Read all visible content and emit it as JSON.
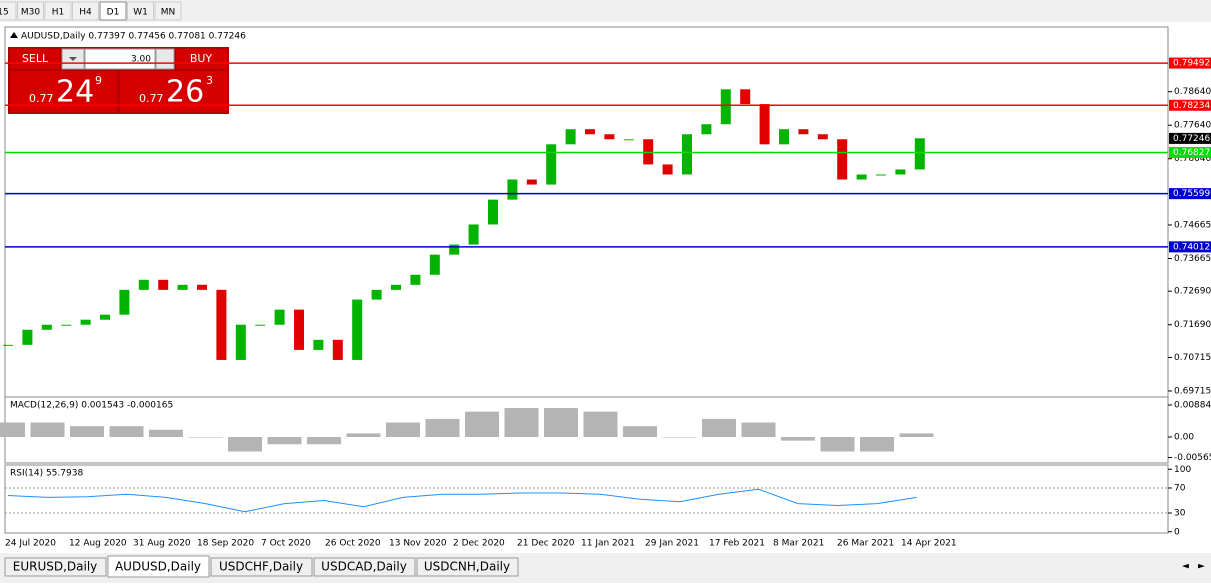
{
  "toolbar": {
    "timeframes": [
      "15",
      "M30",
      "H1",
      "H4",
      "D1",
      "W1",
      "MN"
    ]
  },
  "header": "AUDUSD,Daily 0.77397 0.77456 0.77081 0.77246",
  "trade_panel": {
    "sell": "SELL",
    "buy": "BUY",
    "lots": "3.00",
    "sell_price": [
      "0.77",
      "24",
      "9"
    ],
    "buy_price": [
      "0.77",
      "26",
      "3"
    ]
  },
  "price_chart": {
    "type": "candlestick",
    "ylim": [
      0.69535,
      0.80568
    ],
    "yticks": [
      {
        "value": 0.7864,
        "label": "0.78640"
      },
      {
        "value": 0.7764,
        "label": "0.77640"
      },
      {
        "value": 0.7664,
        "label": "0.76640"
      },
      0.74665,
      0.73665,
      {
        "value": 0.7269,
        "label": "0.72690"
      },
      {
        "value": 0.7169,
        "label": "0.71690"
      },
      0.70715,
      0.69715
    ],
    "closes": [
      0.7109,
      0.7154,
      0.7169,
      0.7169,
      0.7184,
      0.7199,
      0.7273,
      0.7303,
      0.7273,
      0.7288,
      0.7273,
      0.7064,
      0.7169,
      0.7169,
      0.7214,
      0.7094,
      0.7124,
      0.7064,
      0.7244,
      0.7273,
      0.7288,
      0.7318,
      0.7378,
      0.7408,
      0.7468,
      0.7542,
      0.7602,
      0.7587,
      0.7707,
      0.7752,
      0.7737,
      0.7722,
      0.7722,
      0.7647,
      0.7617,
      0.7737,
      0.7767,
      0.7871,
      0.7827,
      0.7707,
      0.7752,
      0.7737,
      0.7722,
      0.7602,
      0.7617,
      0.7617,
      0.7632,
      0.7725
    ],
    "up_color": "#00b400",
    "down_color": "#e00000",
    "levels": [
      {
        "value": 0.79492,
        "color": "#ff0000"
      },
      {
        "value": 0.78234,
        "color": "#ff0000"
      },
      {
        "value": 0.76827,
        "color": "#00dd00"
      },
      {
        "value": 0.75599,
        "color": "#0000cc"
      },
      {
        "value": 0.74012,
        "color": "#0000cc"
      }
    ],
    "current": 0.77246,
    "dates": [
      "24 Jul 2020",
      "12 Aug 2020",
      "31 Aug 2020",
      "18 Sep 2020",
      "7 Oct 2020",
      "26 Oct 2020",
      "13 Nov 2020",
      "2 Dec 2020",
      "21 Dec 2020",
      "11 Jan 2021",
      "29 Jan 2021",
      "17 Feb 2021",
      "8 Mar 2021",
      "26 Mar 2021",
      "14 Apr 2021"
    ]
  },
  "macd": {
    "label": "MACD(12,26,9) 0.001543 -0.000165",
    "ylim": [
      -0.00718,
      0.01105
    ],
    "yticks": [
      0.00884,
      {
        "value": 0,
        "label": "0.00"
      },
      -0.005651
    ],
    "values": [
      0.004,
      0.004,
      0.003,
      0.003,
      0.002,
      0.0,
      -0.004,
      -0.002,
      -0.002,
      0.001,
      0.004,
      0.005,
      0.007,
      0.008,
      0.008,
      0.007,
      0.003,
      0.0,
      0.005,
      0.004,
      -0.001,
      -0.004,
      -0.004,
      0.001
    ],
    "color": "#b4b4b4"
  },
  "rsi": {
    "label": "RSI(14) 55.7938",
    "ylim": [
      -2,
      106.8
    ],
    "yticks": [
      100,
      70,
      30,
      0
    ],
    "levels": [
      70,
      30
    ],
    "values": [
      58,
      55,
      56,
      60,
      55,
      45,
      32,
      45,
      50,
      40,
      55,
      60,
      60,
      62,
      62,
      60,
      52,
      48,
      60,
      68,
      45,
      42,
      45,
      55
    ],
    "color": "#1e90ff"
  },
  "tabs": [
    "EURUSD,Daily",
    "AUDUSD,Daily",
    "USDCHF,Daily",
    "USDCAD,Daily",
    "USDCNH,Daily"
  ]
}
